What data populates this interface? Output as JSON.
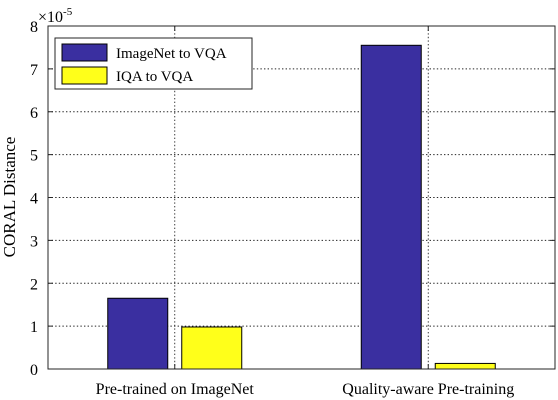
{
  "chart_data": {
    "type": "bar",
    "categories": [
      "Pre-trained on ImageNet",
      "Quality-aware Pre-training"
    ],
    "series": [
      {
        "name": "ImageNet to VQA",
        "color": "#3a2fa0",
        "values": [
          1.65,
          7.55
        ]
      },
      {
        "name": "IQA to VQA",
        "color": "#ffff1a",
        "values": [
          0.98,
          0.13
        ]
      }
    ],
    "ylabel": "CORAL Distance",
    "xlabel": "",
    "title": "",
    "ylim": [
      0,
      8
    ],
    "yticks": [
      0,
      1,
      2,
      3,
      4,
      5,
      6,
      7,
      8
    ],
    "y_exponent_base": "×10",
    "y_exponent_power": "-5",
    "grid": true,
    "legend_position": "top-left"
  }
}
